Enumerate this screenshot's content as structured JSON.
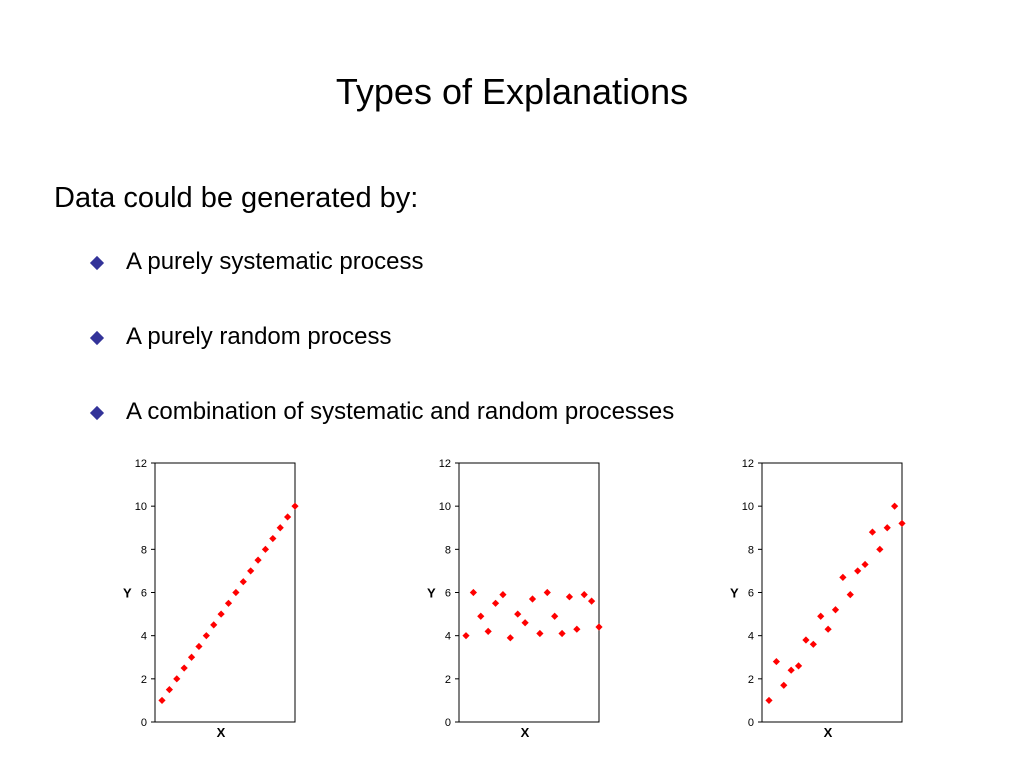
{
  "slide": {
    "title": "Types of Explanations",
    "lead": "Data could be generated by:",
    "bullets": [
      "A purely systematic process",
      "A purely random process",
      "A combination of systematic and random processes"
    ],
    "bullet_color": "#333399"
  },
  "chart_data": [
    {
      "type": "scatter",
      "xlabel": "X",
      "ylabel": "Y",
      "ylim": [
        0,
        12
      ],
      "yticks": [
        0,
        2,
        4,
        6,
        8,
        10,
        12
      ],
      "marker_color": "#ff0000",
      "grid": false,
      "x": [
        1,
        2,
        3,
        4,
        5,
        6,
        7,
        8,
        9,
        10,
        11,
        12,
        13,
        14,
        15,
        16,
        17,
        18,
        19
      ],
      "y": [
        1.0,
        1.5,
        2.0,
        2.5,
        3.0,
        3.5,
        4.0,
        4.5,
        5.0,
        5.5,
        6.0,
        6.5,
        7.0,
        7.5,
        8.0,
        8.5,
        9.0,
        9.5,
        10.0
      ]
    },
    {
      "type": "scatter",
      "xlabel": "X",
      "ylabel": "Y",
      "ylim": [
        0,
        12
      ],
      "yticks": [
        0,
        2,
        4,
        6,
        8,
        10,
        12
      ],
      "marker_color": "#ff0000",
      "grid": false,
      "x": [
        1,
        2,
        3,
        4,
        5,
        6,
        7,
        8,
        9,
        10,
        11,
        12,
        13,
        14,
        15,
        16,
        17,
        18,
        19
      ],
      "y": [
        4.0,
        6.0,
        4.9,
        4.2,
        5.5,
        5.9,
        3.9,
        5.0,
        4.6,
        5.7,
        4.1,
        6.0,
        4.9,
        4.1,
        5.8,
        4.3,
        5.9,
        5.6,
        4.4
      ]
    },
    {
      "type": "scatter",
      "xlabel": "X",
      "ylabel": "Y",
      "ylim": [
        0,
        12
      ],
      "yticks": [
        0,
        2,
        4,
        6,
        8,
        10,
        12
      ],
      "marker_color": "#ff0000",
      "grid": false,
      "x": [
        1,
        2,
        3,
        4,
        5,
        6,
        7,
        8,
        9,
        10,
        11,
        12,
        13,
        14,
        15,
        16,
        17,
        18,
        19
      ],
      "y": [
        1.0,
        2.8,
        1.7,
        2.4,
        2.6,
        3.8,
        3.6,
        4.9,
        4.3,
        5.2,
        6.7,
        5.9,
        7.0,
        7.3,
        8.8,
        8.0,
        9.0,
        10.0,
        9.2
      ]
    }
  ]
}
